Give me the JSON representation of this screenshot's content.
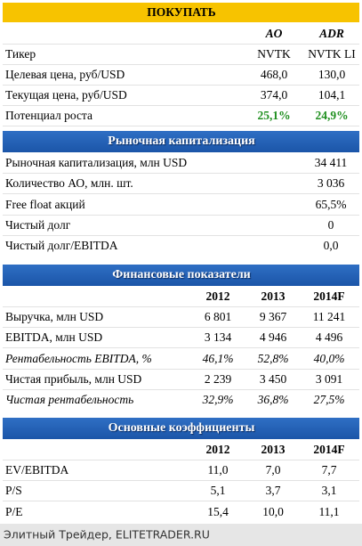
{
  "header": {
    "title": "ПОКУПАТЬ"
  },
  "recommendation": {
    "columns": [
      "AO",
      "ADR"
    ],
    "rows": [
      [
        "Тикер",
        "NVTK",
        "NVTK LI"
      ],
      [
        "Целевая цена, руб/USD",
        "468,0",
        "130,0"
      ],
      [
        "Текущая цена, руб/USD",
        "374,0",
        "104,1"
      ],
      [
        "Потенциал роста",
        "25,1%",
        "24,9%"
      ]
    ]
  },
  "sections": [
    {
      "title": "Рыночная капитализация",
      "rows": [
        [
          "Рыночная капитализация, млн USD",
          "34 411"
        ],
        [
          "Количество АО, млн. шт.",
          "3 036"
        ],
        [
          "Free float акций",
          "65,5%"
        ],
        [
          "Чистый долг",
          "0"
        ],
        [
          "Чистый долг/EBITDA",
          "0,0"
        ]
      ]
    },
    {
      "title": "Финансовые показатели",
      "columns": [
        "2012",
        "2013",
        "2014F"
      ],
      "rows": [
        [
          "Выручка, млн USD",
          "6 801",
          "9 367",
          "11 241"
        ],
        [
          "EBITDA, млн USD",
          "3 134",
          "4 946",
          "4 496"
        ],
        [
          "Рентабельность EBITDA, %",
          "46,1%",
          "52,8%",
          "40,0%"
        ],
        [
          "Чистая прибыль, млн USD",
          "2 239",
          "3 450",
          "3 091"
        ],
        [
          "Чистая рентабельность",
          "32,9%",
          "36,8%",
          "27,5%"
        ]
      ]
    },
    {
      "title": "Основные коэффициенты",
      "columns": [
        "2012",
        "2013",
        "2014F"
      ],
      "rows": [
        [
          "EV/EBITDA",
          "11,0",
          "7,0",
          "7,7"
        ],
        [
          "P/S",
          "5,1",
          "3,7",
          "3,1"
        ],
        [
          "P/E",
          "15,4",
          "10,0",
          "11,1"
        ]
      ]
    }
  ],
  "footer": "Элитный Трейдер, ELITETRADER.RU"
}
